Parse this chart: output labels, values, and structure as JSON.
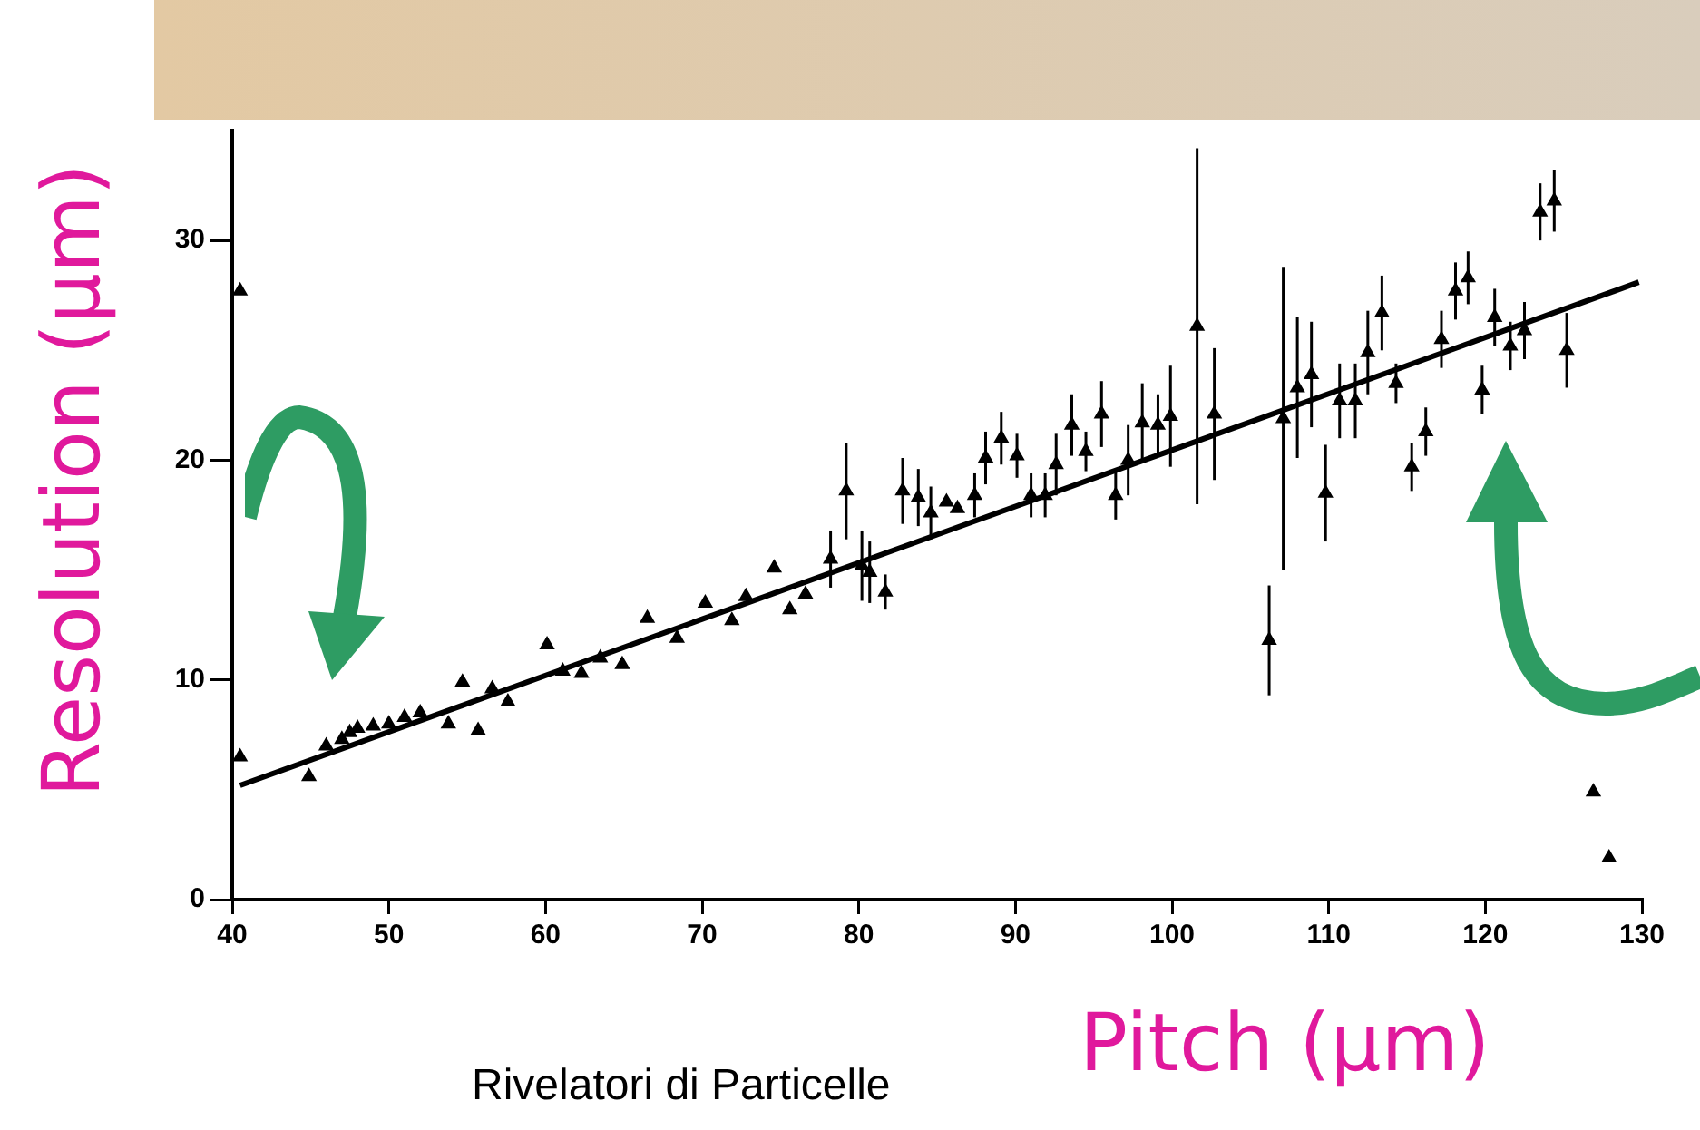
{
  "chart_data": {
    "type": "scatter",
    "xlabel": "Pitch (μm)",
    "ylabel": "Resolution (μm)",
    "annotations": [
      "Rivelatori di Particelle"
    ],
    "xlim": [
      40,
      130
    ],
    "xticks": [
      40,
      50,
      60,
      70,
      80,
      90,
      100,
      110,
      120,
      130
    ],
    "ylim": [
      0,
      35
    ],
    "yticks": [
      0,
      10,
      20,
      30
    ],
    "grid": false,
    "legend": false,
    "series": [
      {
        "color": "#000000",
        "marker": "triangle",
        "x": [
          40.5,
          40.5,
          44.9,
          46,
          47,
          47.5,
          48,
          49,
          50,
          51,
          52,
          53.8,
          54.7,
          55.7,
          56.6,
          57.6,
          60.1,
          61.1,
          62.3,
          63.5,
          64.9,
          66.5,
          68.4,
          70.2,
          71.9,
          72.8,
          74.6,
          75.6,
          76.6,
          78.2,
          79.2,
          80.2,
          80.7,
          81.7,
          82.8,
          83.8,
          84.6,
          85.6,
          86.3,
          87.4,
          88.1,
          89.1,
          90.1,
          91.0,
          91.9,
          92.6,
          93.6,
          94.5,
          95.5,
          96.4,
          97.2,
          98.1,
          99.1,
          99.9,
          101.6,
          102.7,
          106.2,
          107.1,
          108.0,
          108.9,
          109.8,
          110.7,
          111.7,
          112.5,
          113.4,
          114.3,
          115.3,
          116.2,
          117.2,
          118.1,
          118.9,
          119.8,
          120.6,
          121.6,
          122.5,
          123.5,
          124.4,
          125.2,
          126.9,
          127.9
        ],
        "values": [
          27.7,
          6.5,
          5.6,
          7.0,
          7.3,
          7.6,
          7.8,
          7.9,
          8.0,
          8.3,
          8.5,
          8.0,
          9.9,
          7.7,
          9.6,
          9.0,
          11.6,
          10.4,
          10.3,
          11.0,
          10.7,
          12.8,
          11.9,
          13.5,
          12.7,
          13.8,
          15.1,
          13.2,
          13.9,
          15.5,
          18.6,
          15.2,
          14.9,
          14.0,
          18.6,
          18.3,
          17.6,
          18.1,
          17.8,
          18.4,
          20.1,
          21.0,
          20.2,
          18.4,
          18.4,
          19.8,
          21.6,
          20.4,
          22.1,
          18.4,
          20.0,
          21.7,
          21.6,
          22.0,
          26.1,
          22.1,
          11.8,
          21.9,
          23.3,
          23.9,
          18.5,
          22.7,
          22.7,
          24.9,
          26.7,
          23.5,
          19.7,
          21.3,
          25.5,
          27.7,
          28.3,
          23.2,
          26.5,
          25.2,
          25.9,
          31.3,
          31.8,
          25.0,
          4.9,
          1.9
        ],
        "errors": [
          null,
          null,
          null,
          null,
          null,
          null,
          null,
          null,
          null,
          null,
          null,
          null,
          null,
          null,
          null,
          null,
          null,
          null,
          null,
          null,
          null,
          null,
          null,
          null,
          null,
          null,
          null,
          null,
          null,
          1.3,
          2.2,
          1.6,
          1.4,
          0.8,
          1.5,
          1.3,
          1.2,
          null,
          null,
          1.0,
          1.2,
          1.2,
          1.0,
          1.0,
          1.0,
          1.4,
          1.4,
          0.9,
          1.5,
          1.1,
          1.6,
          1.8,
          1.4,
          2.3,
          8.1,
          3.0,
          2.5,
          6.9,
          3.2,
          2.4,
          2.2,
          1.7,
          1.7,
          1.9,
          1.7,
          0.9,
          1.1,
          1.1,
          1.3,
          1.3,
          1.2,
          1.1,
          1.3,
          1.1,
          1.3,
          1.3,
          1.4,
          1.7,
          null,
          null
        ]
      },
      {
        "type": "line",
        "color": "#000000",
        "marker": "none",
        "x": [
          40.5,
          129.8
        ],
        "values": [
          5.2,
          28.1
        ]
      }
    ]
  }
}
